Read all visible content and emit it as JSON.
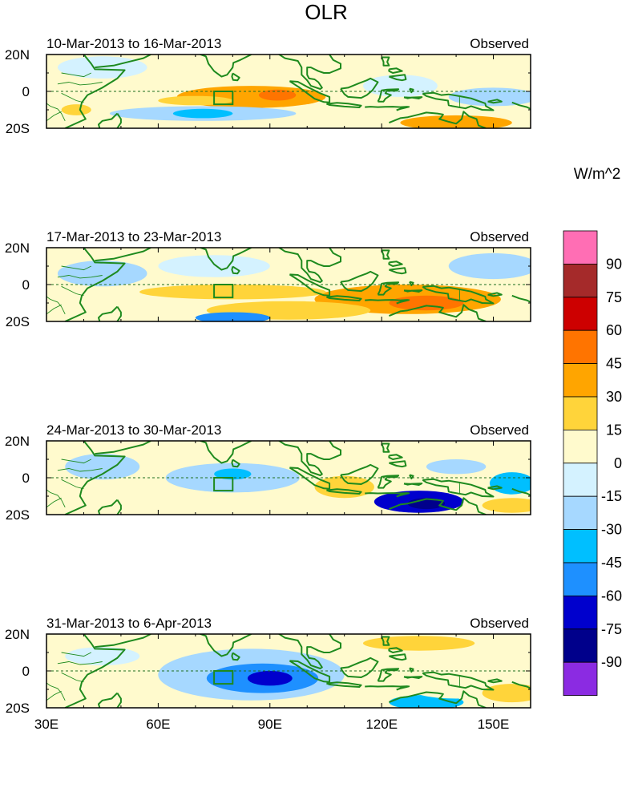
{
  "chart_data": {
    "type": "heatmap",
    "title": "OLR",
    "units_label": "W/m^2",
    "lon_range": [
      30,
      160
    ],
    "lat_range": [
      -20,
      20
    ],
    "x_ticks": [
      {
        "value": 30,
        "label": "30E"
      },
      {
        "value": 60,
        "label": "60E"
      },
      {
        "value": 90,
        "label": "90E"
      },
      {
        "value": 120,
        "label": "120E"
      },
      {
        "value": 150,
        "label": "150E"
      }
    ],
    "y_ticks": [
      {
        "value": 20,
        "label": "20N"
      },
      {
        "value": 0,
        "label": "0"
      },
      {
        "value": -20,
        "label": "20S"
      }
    ],
    "box_region": {
      "lon": [
        75,
        80
      ],
      "lat": [
        -7,
        0
      ]
    },
    "colorbar": {
      "levels": [
        {
          "label": "90",
          "color": "#ff6eb4"
        },
        {
          "label": "75",
          "color": "#a52a2a"
        },
        {
          "label": "60",
          "color": "#cd0000"
        },
        {
          "label": "45",
          "color": "#ff7400"
        },
        {
          "label": "30",
          "color": "#ffa500"
        },
        {
          "label": "15",
          "color": "#ffd43a"
        },
        {
          "label": "0",
          "color": "#fffacd"
        },
        {
          "label": "-15",
          "color": "#d4f2ff"
        },
        {
          "label": "-30",
          "color": "#a6d8ff"
        },
        {
          "label": "-45",
          "color": "#00bfff"
        },
        {
          "label": "-60",
          "color": "#1e90ff"
        },
        {
          "label": "-75",
          "color": "#0000cd"
        },
        {
          "label": "-90",
          "color": "#00008b"
        },
        {
          "label": "",
          "color": "#8b2be2"
        }
      ]
    },
    "panels": [
      {
        "period": "10-Mar-2013 to 16-Mar-2013",
        "label": "Observed",
        "anomalies": [
          {
            "lon": 85,
            "lat": -3,
            "rx": 20,
            "ry": 6,
            "value": 40
          },
          {
            "lon": 92,
            "lat": -2,
            "rx": 5,
            "ry": 3,
            "value": 52
          },
          {
            "lon": 70,
            "lat": -5,
            "rx": 10,
            "ry": 2.5,
            "value": 25
          },
          {
            "lon": 38,
            "lat": -10,
            "rx": 4,
            "ry": 3,
            "value": 22
          },
          {
            "lon": 140,
            "lat": -17,
            "rx": 15,
            "ry": 4,
            "value": 35
          },
          {
            "lon": 115,
            "lat": 10,
            "rx": 10,
            "ry": 6,
            "value": 8
          },
          {
            "lon": 72,
            "lat": -12,
            "rx": 25,
            "ry": 4,
            "value": -28
          },
          {
            "lon": 72,
            "lat": -12,
            "rx": 8,
            "ry": 2.5,
            "value": -40
          },
          {
            "lon": 45,
            "lat": 13,
            "rx": 12,
            "ry": 6,
            "value": -12
          },
          {
            "lon": 150,
            "lat": -3,
            "rx": 12,
            "ry": 5,
            "value": -22
          },
          {
            "lon": 125,
            "lat": 3,
            "rx": 10,
            "ry": 6,
            "value": -10
          }
        ]
      },
      {
        "period": "17-Mar-2013 to 23-Mar-2013",
        "label": "Observed",
        "anomalies": [
          {
            "lon": 127,
            "lat": -8,
            "rx": 25,
            "ry": 8,
            "value": 38
          },
          {
            "lon": 132,
            "lat": -10,
            "rx": 10,
            "ry": 4,
            "value": 50
          },
          {
            "lon": 80,
            "lat": -4,
            "rx": 25,
            "ry": 4,
            "value": 25
          },
          {
            "lon": 95,
            "lat": -14,
            "rx": 22,
            "ry": 5,
            "value": 15
          },
          {
            "lon": 45,
            "lat": 6,
            "rx": 12,
            "ry": 7,
            "value": -20
          },
          {
            "lon": 75,
            "lat": 10,
            "rx": 15,
            "ry": 6,
            "value": -12
          },
          {
            "lon": 150,
            "lat": 10,
            "rx": 12,
            "ry": 7,
            "value": -18
          },
          {
            "lon": 80,
            "lat": -18,
            "rx": 10,
            "ry": 3,
            "value": -60
          }
        ]
      },
      {
        "period": "24-Mar-2013 to 30-Mar-2013",
        "label": "Observed",
        "anomalies": [
          {
            "lon": 80,
            "lat": 0,
            "rx": 18,
            "ry": 8,
            "value": -28
          },
          {
            "lon": 80,
            "lat": 2,
            "rx": 5,
            "ry": 3,
            "value": -45
          },
          {
            "lon": 130,
            "lat": -13,
            "rx": 12,
            "ry": 6,
            "value": -65
          },
          {
            "lon": 132,
            "lat": -14,
            "rx": 5,
            "ry": 3,
            "value": -80
          },
          {
            "lon": 45,
            "lat": 6,
            "rx": 10,
            "ry": 7,
            "value": -25
          },
          {
            "lon": 155,
            "lat": -3,
            "rx": 6,
            "ry": 6,
            "value": -40
          },
          {
            "lon": 140,
            "lat": 6,
            "rx": 8,
            "ry": 4,
            "value": -28
          },
          {
            "lon": 110,
            "lat": -5,
            "rx": 8,
            "ry": 6,
            "value": 15
          },
          {
            "lon": 50,
            "lat": -10,
            "rx": 8,
            "ry": 5,
            "value": 12
          },
          {
            "lon": 155,
            "lat": -15,
            "rx": 8,
            "ry": 4,
            "value": 22
          }
        ]
      },
      {
        "period": "31-Mar-2013 to 6-Apr-2013",
        "label": "Observed",
        "anomalies": [
          {
            "lon": 85,
            "lat": -2,
            "rx": 25,
            "ry": 14,
            "value": -30
          },
          {
            "lon": 88,
            "lat": -4,
            "rx": 15,
            "ry": 8,
            "value": -50
          },
          {
            "lon": 90,
            "lat": -4,
            "rx": 6,
            "ry": 4,
            "value": -70
          },
          {
            "lon": 132,
            "lat": -17,
            "rx": 10,
            "ry": 4,
            "value": -38
          },
          {
            "lon": 45,
            "lat": 8,
            "rx": 10,
            "ry": 5,
            "value": -15
          },
          {
            "lon": 140,
            "lat": -10,
            "rx": 12,
            "ry": 5,
            "value": 12
          },
          {
            "lon": 130,
            "lat": 15,
            "rx": 15,
            "ry": 4,
            "value": 15
          },
          {
            "lon": 155,
            "lat": -12,
            "rx": 8,
            "ry": 5,
            "value": 22
          },
          {
            "lon": 45,
            "lat": -8,
            "rx": 10,
            "ry": 6,
            "value": 8
          }
        ]
      }
    ]
  }
}
